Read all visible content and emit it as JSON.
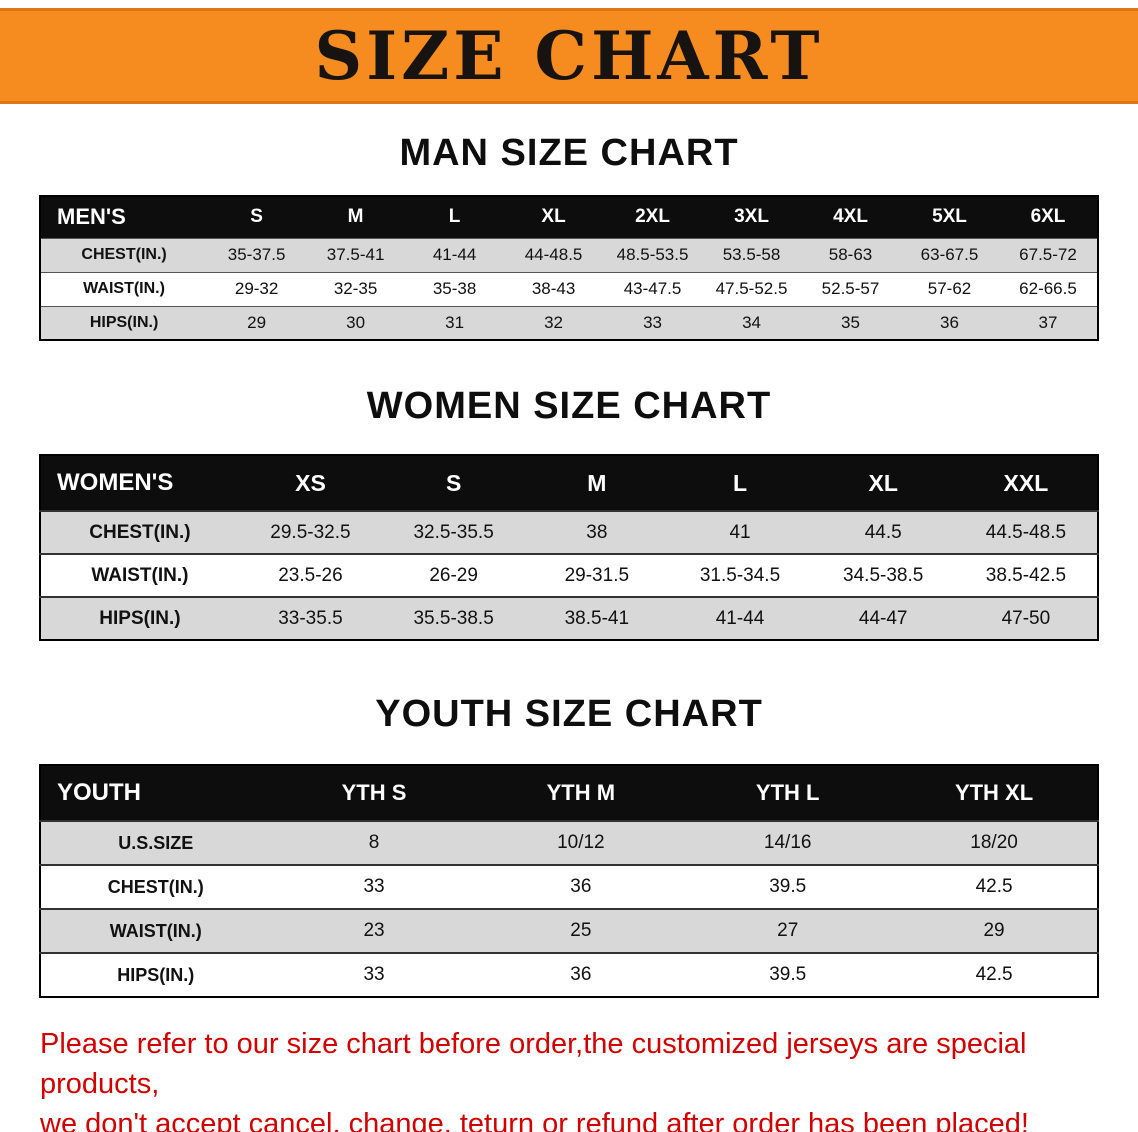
{
  "banner": {
    "title": "SIZE CHART",
    "bg_color": "#f68b1f"
  },
  "sections": [
    {
      "heading": "MAN SIZE CHART",
      "table": {
        "header": [
          "MEN'S",
          "S",
          "M",
          "L",
          "XL",
          "2XL",
          "3XL",
          "4XL",
          "5XL",
          "6XL"
        ],
        "rows": [
          {
            "label": "CHEST(IN.)",
            "values": [
              "35-37.5",
              "37.5-41",
              "41-44",
              "44-48.5",
              "48.5-53.5",
              "53.5-58",
              "58-63",
              "63-67.5",
              "67.5-72"
            ]
          },
          {
            "label": "WAIST(IN.)",
            "values": [
              "29-32",
              "32-35",
              "35-38",
              "38-43",
              "43-47.5",
              "47.5-52.5",
              "52.5-57",
              "57-62",
              "62-66.5"
            ]
          },
          {
            "label": "HIPS(IN.)",
            "values": [
              "29",
              "30",
              "31",
              "32",
              "33",
              "34",
              "35",
              "36",
              "37"
            ]
          }
        ]
      }
    },
    {
      "heading": "WOMEN SIZE CHART",
      "table": {
        "header": [
          "WOMEN'S",
          "XS",
          "S",
          "M",
          "L",
          "XL",
          "XXL"
        ],
        "rows": [
          {
            "label": "CHEST(IN.)",
            "values": [
              "29.5-32.5",
              "32.5-35.5",
              "38",
              "41",
              "44.5",
              "44.5-48.5"
            ]
          },
          {
            "label": "WAIST(IN.)",
            "values": [
              "23.5-26",
              "26-29",
              "29-31.5",
              "31.5-34.5",
              "34.5-38.5",
              "38.5-42.5"
            ]
          },
          {
            "label": "HIPS(IN.)",
            "values": [
              "33-35.5",
              "35.5-38.5",
              "38.5-41",
              "41-44",
              "44-47",
              "47-50"
            ]
          }
        ]
      }
    },
    {
      "heading": "YOUTH SIZE CHART",
      "table": {
        "header": [
          "YOUTH",
          "YTH S",
          "YTH M",
          "YTH L",
          "YTH XL"
        ],
        "rows": [
          {
            "label": "U.S.SIZE",
            "values": [
              "8",
              "10/12",
              "14/16",
              "18/20"
            ]
          },
          {
            "label": "CHEST(IN.)",
            "values": [
              "33",
              "36",
              "39.5",
              "42.5"
            ]
          },
          {
            "label": "WAIST(IN.)",
            "values": [
              "23",
              "25",
              "27",
              "29"
            ]
          },
          {
            "label": "HIPS(IN.)",
            "values": [
              "33",
              "36",
              "39.5",
              "42.5"
            ]
          }
        ]
      }
    }
  ],
  "footer": {
    "line1": "Please refer to our size chart before order,the customized jerseys are special products,",
    "line2": "we don't accept cancel, change, teturn or refund after order has been placed!",
    "color": "#d40000"
  }
}
